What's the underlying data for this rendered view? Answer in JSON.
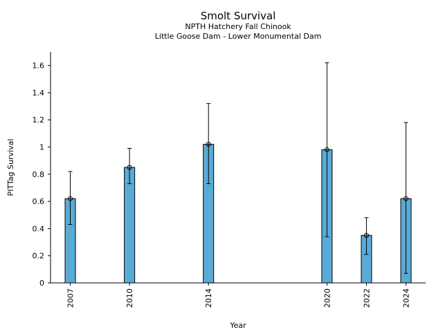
{
  "chart_data": {
    "type": "bar",
    "title": "Smolt Survival",
    "subtitle_lines": [
      "NPTH Hatchery Fall Chinook",
      "Little Goose Dam - Lower Monumental Dam"
    ],
    "xlabel": "Year",
    "ylabel": "PITTag Survival",
    "x": [
      2007,
      2010,
      2014,
      2020,
      2022,
      2024
    ],
    "x_tick_labels": [
      "2007",
      "2010",
      "2014",
      "2020",
      "2022",
      "2024"
    ],
    "xlim": [
      2006.0,
      2025.0
    ],
    "values": [
      0.62,
      0.85,
      1.02,
      0.98,
      0.35,
      0.62
    ],
    "error_low": [
      0.43,
      0.73,
      0.73,
      0.34,
      0.21,
      0.07
    ],
    "error_high": [
      0.82,
      0.99,
      1.32,
      1.62,
      0.48,
      1.18
    ],
    "ylim": [
      0,
      1.7
    ],
    "y_ticks": [
      0,
      0.2,
      0.4,
      0.6,
      0.8,
      1.0,
      1.2,
      1.4,
      1.6
    ],
    "y_tick_labels": [
      "0",
      "0.2",
      "0.4",
      "0.6",
      "0.8",
      "1",
      "1.2",
      "1.4",
      "1.6"
    ],
    "bar_color": "#5aaad6",
    "grid": false,
    "legend": "none"
  }
}
